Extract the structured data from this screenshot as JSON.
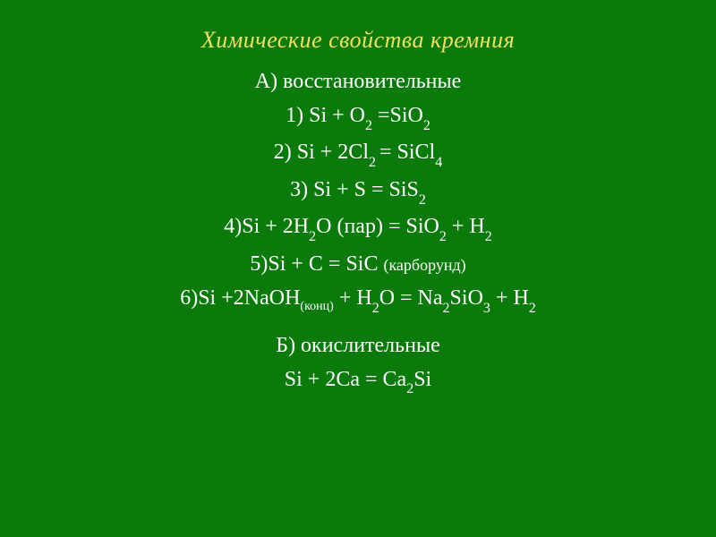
{
  "slide": {
    "background_color": "#0a7a0a",
    "text_color": "#ffffff",
    "title_color": "#f0e060",
    "title_fontsize": 26,
    "body_fontsize": 24,
    "font_family": "Times New Roman",
    "title_italic": true
  },
  "title": "Химические свойства кремния",
  "section_a": {
    "header": "А) восстановительные",
    "eq1_prefix": "1) Si + O",
    "eq1_sub1": "2",
    "eq1_mid": " =SiO",
    "eq1_sub2": "2",
    "eq2_prefix": "2) Si + 2Cl",
    "eq2_sub1": "2 ",
    "eq2_mid": "= SiCl",
    "eq2_sub2": "4",
    "eq3_prefix": "3) Si + S = SiS",
    "eq3_sub1": "2",
    "eq4_prefix": "4)Si + 2H",
    "eq4_sub1": "2",
    "eq4_mid1": "O (пар) = SiO",
    "eq4_sub2": "2",
    "eq4_mid2": " + H",
    "eq4_sub3": "2",
    "eq5_prefix": "5)Si + C = SiC ",
    "eq5_note": "(карборунд)",
    "eq6_prefix": "6)Si +2NaOH",
    "eq6_sub1": "(конц)",
    "eq6_mid1": " + H",
    "eq6_sub2": "2",
    "eq6_mid2": "O = Na",
    "eq6_sub3": "2",
    "eq6_mid3": "SiO",
    "eq6_sub4": "3",
    "eq6_mid4": " + H",
    "eq6_sub5": "2"
  },
  "section_b": {
    "header": "Б) окислительные",
    "eq1_prefix": "Si + 2Ca = Ca",
    "eq1_sub1": "2",
    "eq1_suffix": "Si"
  }
}
